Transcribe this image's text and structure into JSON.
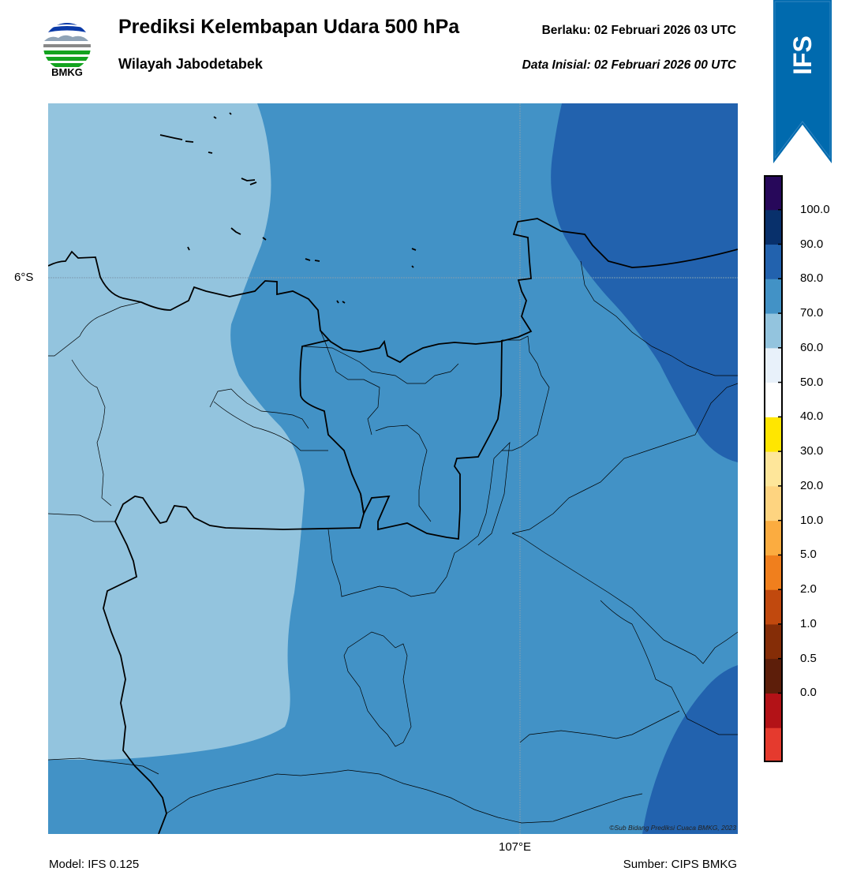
{
  "header": {
    "logo_text": "BMKG",
    "title": "Prediksi Kelembapan Udara 500 hPa",
    "subtitle": "Wilayah Jabodetabek",
    "valid": "Berlaku:  02 Februari 2026 03 UTC",
    "initial": "Data Inisial:  02 Februari 2026 00 UTC",
    "model_tag": "IFS"
  },
  "map": {
    "lat_label": "6°S",
    "lon_label": "107°E",
    "credit": "©Sub Bidang Prediksi Cuaca BMKG, 2023",
    "colors": {
      "band_60_70": "#93c4de",
      "band_70_80": "#4292c6",
      "band_80_90": "#2262ae",
      "boundary": "#000000"
    }
  },
  "colorbar": {
    "ticks": [
      "100.0",
      "90.0",
      "80.0",
      "70.0",
      "60.0",
      "50.0",
      "40.0",
      "30.0",
      "20.0",
      "10.0",
      "5.0",
      "2.0",
      "1.0",
      "0.5",
      "0.0"
    ],
    "colors_bottom_to_top": [
      "#e53a2e",
      "#b31217",
      "#5d1e0a",
      "#852d07",
      "#c1490e",
      "#f07f1d",
      "#fbac40",
      "#fed480",
      "#fee69a",
      "#ffe600",
      "#ffffff",
      "#e8f1fa",
      "#93c4de",
      "#4292c6",
      "#2262ae",
      "#08306b",
      "#27085a"
    ]
  },
  "footer": {
    "model": "Model: IFS 0.125",
    "source": "Sumber: CIPS BMKG"
  }
}
